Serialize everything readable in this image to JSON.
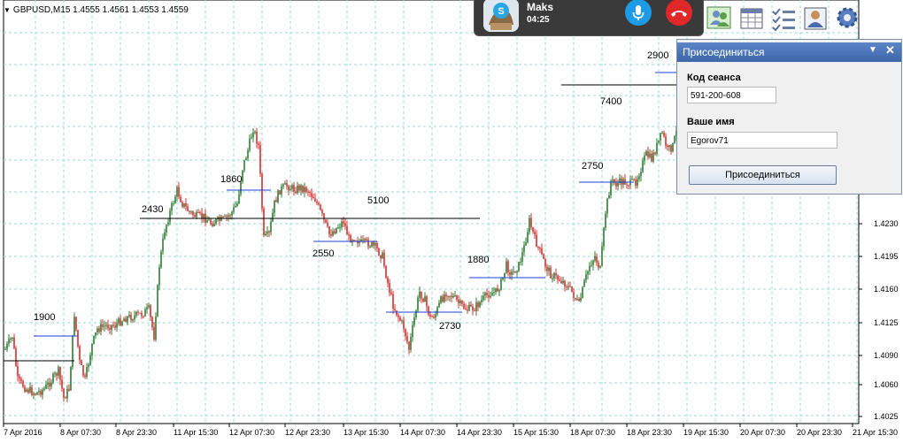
{
  "chart": {
    "symbol_line": "GBPUSD,M15  1.4555 1.4561 1.4553 1.4559",
    "price_ticks": [
      "1.4230",
      "1.4195",
      "1.4160",
      "1.4125",
      "1.4090",
      "1.4060",
      "1.4025"
    ],
    "time_ticks": [
      "7 Apr 2016",
      "8 Apr 07:30",
      "8 Apr 23:30",
      "11 Apr 15:30",
      "12 Apr 07:30",
      "12 Apr 23:30",
      "13 Apr 15:30",
      "14 Apr 07:30",
      "14 Apr 23:30",
      "15 Apr 15:30",
      "18 Apr 07:30",
      "18 Apr 23:30",
      "19 Apr 15:30",
      "20 Apr 07:30",
      "20 Apr 23:30",
      "21 Apr 15:30"
    ],
    "level_labels": [
      "1900",
      "2430",
      "1860",
      "5100",
      "2550",
      "1880",
      "2730",
      "2750",
      "7400",
      "2900"
    ],
    "colors": {
      "bull": "#2e7d32",
      "bear": "#d32f2f",
      "grid": "#9fd8d2",
      "level_blue": "#1f3fd6"
    }
  },
  "call": {
    "name": "Maks",
    "duration": "04:25",
    "avatar_icon": "skype-avatar-icon",
    "mic_icon": "microphone-icon",
    "hangup_icon": "hang-up-icon",
    "mic_color": "#1e9be6",
    "hangup_color": "#e02828"
  },
  "toolbar": {
    "icons": [
      "contacts-icon",
      "calendar-grid-icon",
      "checklist-icon",
      "user-card-icon",
      "settings-gear-icon"
    ]
  },
  "panel": {
    "title": "Присоединиться",
    "session_code_label": "Код сеанса",
    "session_code_value": "591-200-608",
    "name_label": "Ваше имя",
    "name_value": "Egorov71",
    "join_button": "Присоединиться"
  }
}
